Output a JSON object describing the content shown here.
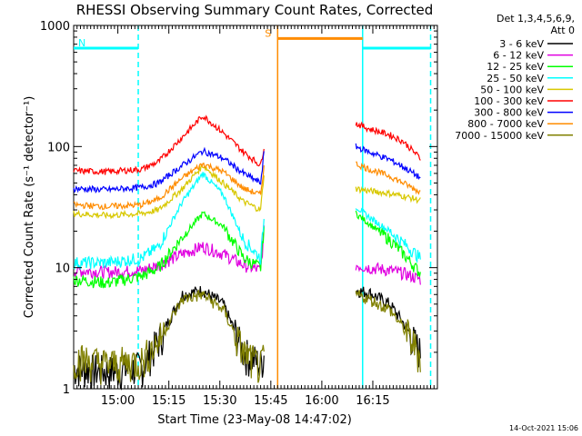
{
  "chart_data": {
    "type": "line",
    "title": "RHESSI Observing Summary Count Rates, Corrected",
    "xlabel": "Start Time (23-May-08 14:47:02)",
    "ylabel": "Corrected Count Rate (s⁻¹ detector⁻¹)",
    "yscale": "log",
    "ylim": [
      1,
      1000
    ],
    "xlim_minutes": [
      0,
      107
    ],
    "x_ticks": [
      {
        "label": "15:00",
        "minute": 13
      },
      {
        "label": "15:15",
        "minute": 28
      },
      {
        "label": "15:30",
        "minute": 43
      },
      {
        "label": "15:45",
        "minute": 58
      },
      {
        "label": "16:00",
        "minute": 73
      },
      {
        "label": "16:15",
        "minute": 88
      }
    ],
    "y_ticks": [
      {
        "label": "1",
        "value": 1
      },
      {
        "label": "10",
        "value": 10
      },
      {
        "label": "100",
        "value": 100
      },
      {
        "label": "1000",
        "value": 1000
      }
    ],
    "legend_header": [
      "Det 1,3,4,5,6,9,",
      "Att 0"
    ],
    "legend_position": "right",
    "series": [
      {
        "name": "3 - 6 keV",
        "color": "#000000",
        "x": [
          0,
          10,
          20,
          25,
          32,
          38,
          44,
          50,
          55,
          56,
          83,
          87,
          93,
          97,
          102
        ],
        "y": [
          1.5,
          1.4,
          1.5,
          2.5,
          6,
          6.5,
          5,
          2,
          1.6,
          1.9,
          6.5,
          6.2,
          5,
          3.5,
          2
        ]
      },
      {
        "name": "6 - 12 keV",
        "color": "#e000e0",
        "x": [
          0,
          10,
          20,
          25,
          32,
          38,
          44,
          50,
          55,
          56,
          83,
          87,
          93,
          97,
          102
        ],
        "y": [
          9.5,
          9.2,
          9.5,
          10.5,
          13,
          15,
          13,
          10.5,
          9.5,
          20,
          10.5,
          10,
          9.5,
          9,
          8
        ]
      },
      {
        "name": "12 - 25 keV",
        "color": "#00ff00",
        "x": [
          0,
          10,
          20,
          25,
          32,
          38,
          44,
          50,
          55,
          56,
          83,
          87,
          93,
          97,
          102
        ],
        "y": [
          8,
          7.5,
          8.5,
          10,
          18,
          28,
          22,
          12,
          10,
          22,
          28,
          23,
          17,
          13,
          9
        ]
      },
      {
        "name": "25 - 50 keV",
        "color": "#00ffff",
        "x": [
          0,
          10,
          20,
          25,
          32,
          38,
          44,
          50,
          55,
          56,
          83,
          87,
          93,
          97,
          102
        ],
        "y": [
          11,
          11,
          12,
          15,
          35,
          60,
          40,
          17,
          12,
          25,
          32,
          26,
          20,
          16,
          12
        ]
      },
      {
        "name": "50 - 100 keV",
        "color": "#d8c800",
        "x": [
          0,
          10,
          20,
          25,
          32,
          38,
          44,
          50,
          55,
          56,
          83,
          87,
          93,
          97,
          102
        ],
        "y": [
          28,
          27,
          28,
          30,
          45,
          70,
          50,
          35,
          30,
          60,
          45,
          43,
          41,
          39,
          36
        ]
      },
      {
        "name": "100 - 300 keV",
        "color": "#ff0000",
        "x": [
          0,
          10,
          20,
          25,
          32,
          38,
          44,
          50,
          55,
          56,
          83,
          87,
          93,
          97,
          102
        ],
        "y": [
          63,
          62,
          65,
          75,
          120,
          180,
          130,
          90,
          70,
          100,
          155,
          140,
          125,
          110,
          80
        ]
      },
      {
        "name": "300 - 800 keV",
        "color": "#0000ff",
        "x": [
          0,
          10,
          20,
          25,
          32,
          38,
          44,
          50,
          55,
          56,
          83,
          87,
          93,
          97,
          102
        ],
        "y": [
          45,
          44,
          46,
          50,
          70,
          92,
          80,
          60,
          50,
          90,
          100,
          90,
          78,
          68,
          55
        ]
      },
      {
        "name": "800 - 7000 keV",
        "color": "#ff8c00",
        "x": [
          0,
          10,
          20,
          25,
          32,
          38,
          44,
          50,
          55,
          56,
          83,
          87,
          93,
          97,
          102
        ],
        "y": [
          33,
          32,
          33,
          37,
          55,
          72,
          62,
          45,
          40,
          70,
          72,
          65,
          57,
          50,
          42
        ]
      },
      {
        "name": "7000 - 15000 keV",
        "color": "#808000",
        "x": [
          0,
          10,
          20,
          25,
          32,
          38,
          44,
          50,
          55,
          56,
          83,
          87,
          93,
          97,
          102
        ],
        "y": [
          1.8,
          1.6,
          1.7,
          2.5,
          5.5,
          6,
          4.5,
          2,
          1.5,
          1.8,
          6,
          5.5,
          4.5,
          3.2,
          1.9
        ]
      }
    ],
    "flag_lines": [
      {
        "label": "N",
        "color": "#00ffff",
        "x_start": 0,
        "x_end": 19,
        "level": 650
      },
      {
        "label": "",
        "color": "#00ffff",
        "x_start": 85,
        "x_end": 105,
        "level": 650
      },
      {
        "label": "S",
        "color": "#ff8c00",
        "x_start": 60,
        "x_end": 85,
        "level": 780
      }
    ],
    "vertical_markers": [
      {
        "color": "#00ffff",
        "minute": 19,
        "style": "dashed"
      },
      {
        "color": "#ff8c00",
        "minute": 60,
        "style": "solid"
      },
      {
        "color": "#00ffff",
        "minute": 85,
        "style": "solid"
      },
      {
        "color": "#00ffff",
        "minute": 105,
        "style": "dashed"
      }
    ]
  },
  "footer": {
    "stamp": "14-Oct-2021 15:06"
  }
}
